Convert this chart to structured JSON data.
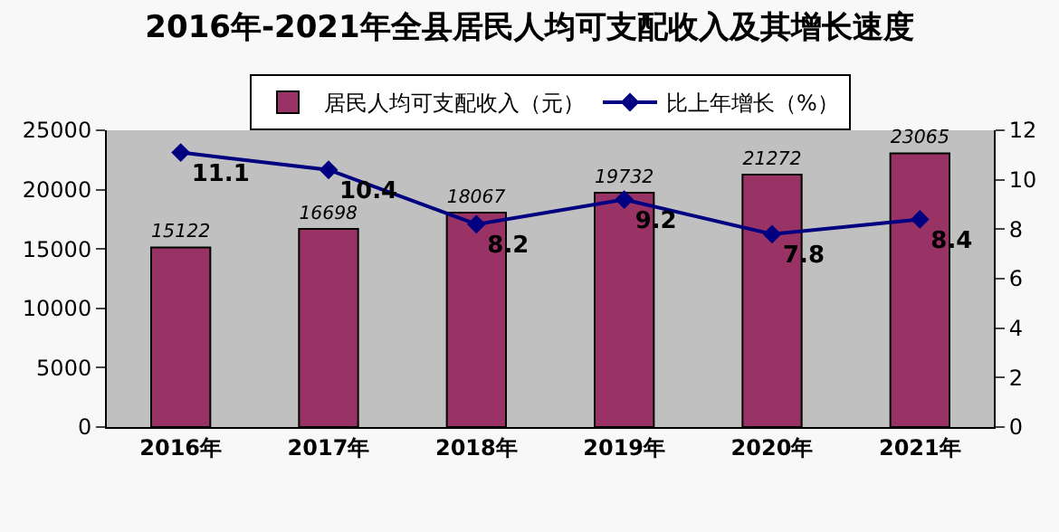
{
  "chart_data": {
    "type": "bar",
    "title": "2016年-2021年全县居民人均可支配收入及其增长速度",
    "categories": [
      "2016年",
      "2017年",
      "2018年",
      "2019年",
      "2020年",
      "2021年"
    ],
    "series": [
      {
        "name": "居民人均可支配收入（元）",
        "color": "#993366",
        "values": [
          15122,
          16698,
          18067,
          19732,
          21272,
          23065
        ]
      },
      {
        "name": "比上年增长（%）",
        "type": "line",
        "axis": "y2",
        "color": "#000080",
        "marker": "diamond",
        "values": [
          11.1,
          10.4,
          8.2,
          9.2,
          7.8,
          8.4
        ]
      }
    ],
    "ylim": [
      0,
      25000
    ],
    "yticks": [
      0,
      5000,
      10000,
      15000,
      20000,
      25000
    ],
    "y2lim": [
      0,
      12
    ],
    "y2ticks": [
      0,
      2,
      4,
      6,
      8,
      10,
      12
    ],
    "data_labels": true,
    "grid": false,
    "legend": "top"
  }
}
